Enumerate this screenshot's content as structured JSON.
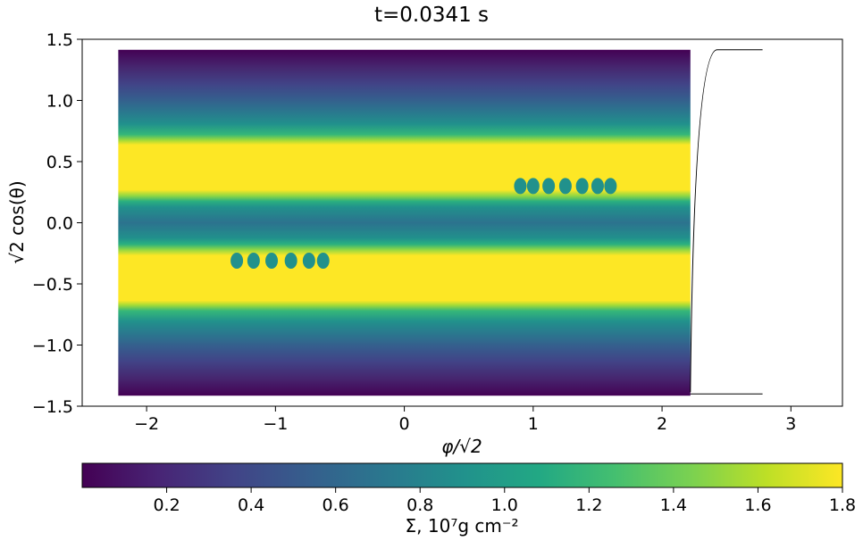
{
  "chart_data": {
    "type": "heatmap",
    "title": "t=0.0341 s",
    "xlabel": "φ/√2",
    "ylabel": "√2 cos(θ)",
    "xlim": [
      -2.5,
      3.4
    ],
    "ylim": [
      -1.5,
      1.5
    ],
    "x_ticks": [
      -2,
      -1,
      0,
      1,
      2,
      3
    ],
    "x_tick_labels": [
      "−2",
      "−1",
      "0",
      "1",
      "2",
      "3"
    ],
    "y_ticks": [
      1.5,
      1.0,
      0.5,
      0.0,
      -0.5,
      -1.0,
      -1.5
    ],
    "y_tick_labels": [
      "1.5",
      "1.0",
      "0.5",
      "0.0",
      "−0.5",
      "−1.0",
      "−1.5"
    ],
    "domain_x": [
      -2.22,
      2.22
    ],
    "domain_y": [
      -1.414,
      1.414
    ],
    "boundary_curve_x_max": 2.78,
    "colormap": "viridis",
    "colorbar": {
      "label": "Σ, 10⁷g cm⁻²",
      "range": [
        0.0,
        1.8
      ],
      "ticks": [
        0.2,
        0.4,
        0.6,
        0.8,
        1.0,
        1.2,
        1.4,
        1.6,
        1.8
      ],
      "tick_labels": [
        "0.2",
        "0.4",
        "0.6",
        "0.8",
        "1.0",
        "1.2",
        "1.4",
        "1.6",
        "1.8"
      ],
      "orientation": "horizontal"
    },
    "bands": [
      {
        "y_from": 1.41,
        "y_to": 0.95,
        "sigma": "0.0–0.6"
      },
      {
        "y_from": 0.95,
        "y_to": 0.65,
        "sigma": "0.6–1.4"
      },
      {
        "y_from": 0.65,
        "y_to": 0.22,
        "sigma": "≥1.8"
      },
      {
        "y_from": 0.22,
        "y_to": -0.22,
        "sigma": "≈0.6–0.9"
      },
      {
        "y_from": -0.22,
        "y_to": -0.65,
        "sigma": "≥1.8"
      },
      {
        "y_from": -0.65,
        "y_to": -0.95,
        "sigma": "0.6–1.4"
      },
      {
        "y_from": -0.95,
        "y_to": -1.41,
        "sigma": "0.0–0.6"
      }
    ],
    "colors": {
      "viridis_0": "#440154",
      "viridis_1": "#3b528b",
      "viridis_2": "#21918c",
      "viridis_3": "#5ec962",
      "viridis_4": "#fde725"
    }
  }
}
